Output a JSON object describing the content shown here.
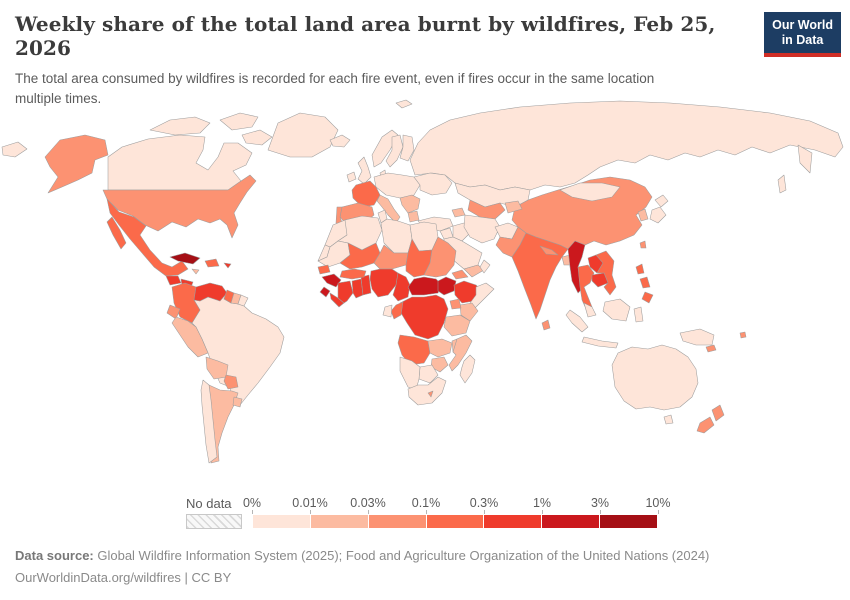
{
  "header": {
    "title": "Weekly share of the total land area burnt by wildfires, Feb 25, 2026",
    "subtitle": "The total area consumed by wildfires is recorded for each fire event, even if fires occur in the same location multiple times.",
    "logo": {
      "line1": "Our World",
      "line2": "in Data",
      "bg_color": "#1d3d63",
      "bar_color": "#d02e26"
    }
  },
  "legend": {
    "no_data_label": "No data",
    "tick_labels": [
      "0%",
      "0.01%",
      "0.03%",
      "0.1%",
      "0.3%",
      "1%",
      "3%",
      "10%"
    ]
  },
  "footer": {
    "source_label": "Data source:",
    "source_text": " Global Wildfire Information System (2025); Food and Agriculture Organization of the United Nations (2024)",
    "link_text": "OurWorldinData.org/wildfires | CC BY"
  },
  "chart_data": {
    "type": "heatmap",
    "subtype": "world-choropleth",
    "title": "Weekly share of the total land area burnt by wildfires, Feb 25, 2026",
    "unit": "%",
    "legend_position": "bottom",
    "bins": [
      "0-0.01%",
      "0.01-0.03%",
      "0.03-0.1%",
      "0.1-0.3%",
      "0.3-1%",
      "1-3%",
      "3-10%"
    ],
    "bin_colors": [
      "#fee5d9",
      "#fcbba1",
      "#fc9272",
      "#fb6a4a",
      "#ef3b2c",
      "#cb181d",
      "#a50f15"
    ],
    "border_color": "#9d9d9d",
    "countries": {
      "canada": 0,
      "greenland": 0,
      "united-states": 2,
      "mexico": 3,
      "guatemala": 4,
      "honduras": 4,
      "nicaragua": 3,
      "costa-rica": 2,
      "panama": 3,
      "cuba": 6,
      "hispaniola": 3,
      "jamaica": 1,
      "puerto-rico": 4,
      "colombia": 3,
      "venezuela": 4,
      "guyana": 3,
      "suriname": 1,
      "french-guiana": 0,
      "ecuador": 2,
      "peru": 1,
      "brazil": 0,
      "bolivia": 1,
      "paraguay": 2,
      "chile": 0,
      "argentina": 1,
      "uruguay": 1,
      "iceland": 0,
      "ireland": 0,
      "united-kingdom": 0,
      "norway": 0,
      "sweden": 0,
      "finland": 0,
      "denmark": 0,
      "central-europe": 0,
      "france": 3,
      "spain": 2,
      "portugal": 2,
      "italy": 1,
      "balkans": 1,
      "greece": 1,
      "eastern-europe": 0,
      "russia": 0,
      "turkey": 0,
      "caucasus": 1,
      "kazakhstan": 0,
      "uzbekistan-turkmenistan": 2,
      "kyrgyzstan-tajikistan": 1,
      "syria-levant": 0,
      "iraq": 0,
      "iran": 0,
      "saudi-arabia": 0,
      "yemen": 1,
      "oman": 0,
      "afghanistan": 0,
      "pakistan": 2,
      "india": 3,
      "nepal": 2,
      "bangladesh": 1,
      "sri-lanka": 2,
      "china": 2,
      "mongolia": 0,
      "korea": 1,
      "japan": 0,
      "taiwan": 2,
      "hainan": 3,
      "myanmar": 5,
      "thailand": 3,
      "laos": 4,
      "cambodia": 4,
      "vietnam": 3,
      "malaysia": 0,
      "philippines": 3,
      "indonesia": 0,
      "new-guinea": 0,
      "australia": 0,
      "tasmania": 0,
      "new-zealand": 2,
      "new-caledonia": 2,
      "fiji": 2,
      "morocco": 0,
      "western-sahara": 0,
      "algeria": 0,
      "tunisia": 0,
      "libya": 0,
      "egypt": 0,
      "mauritania": 0,
      "mali": 3,
      "niger": 2,
      "chad": 3,
      "sudan": 2,
      "senegal": 3,
      "guinea": 5,
      "sierra-leone": 5,
      "liberia": 4,
      "ivory-coast": 4,
      "ghana": 4,
      "togo-benin": 4,
      "burkina-faso": 3,
      "nigeria": 4,
      "cameroon": 4,
      "central-african-republic": 5,
      "south-sudan": 5,
      "ethiopia": 4,
      "eritrea": 2,
      "somalia": 0,
      "kenya": 1,
      "uganda": 2,
      "dr-congo": 4,
      "congo": 3,
      "gabon": 0,
      "tanzania": 1,
      "angola": 3,
      "zambia": 1,
      "malawi": 1,
      "mozambique": 1,
      "zimbabwe": 1,
      "botswana": 0,
      "namibia": 0,
      "south-africa": 0,
      "lesotho": 2,
      "madagascar": 0
    }
  }
}
